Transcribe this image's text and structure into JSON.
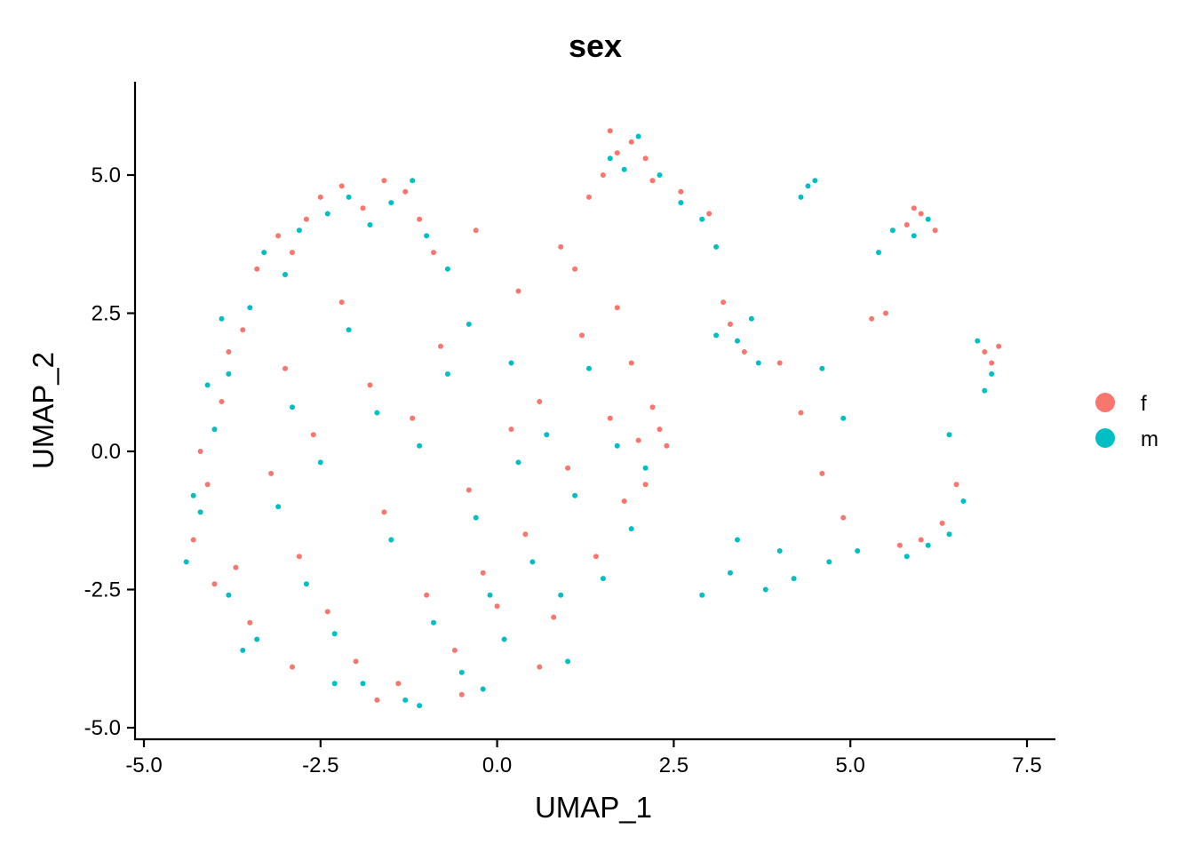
{
  "chart_data": {
    "type": "scatter",
    "title": "sex",
    "xlabel": "UMAP_1",
    "ylabel": "UMAP_2",
    "xlim": [
      -5.2,
      7.9
    ],
    "ylim": [
      -5.2,
      6.9
    ],
    "x_ticks": [
      -5.0,
      -2.5,
      0.0,
      2.5,
      5.0,
      7.5
    ],
    "x_tick_labels": [
      "-5.0",
      "-2.5",
      "0.0",
      "2.5",
      "5.0",
      "7.5"
    ],
    "y_ticks": [
      -5.0,
      -2.5,
      0.0,
      2.5,
      5.0
    ],
    "y_tick_labels": [
      "-5.0",
      "-2.5",
      "0.0",
      "2.5",
      "5.0"
    ],
    "grid": false,
    "legend_position": "right",
    "series": [
      {
        "name": "f",
        "color": "#F8766D",
        "points": [
          [
            -4.3,
            -1.6
          ],
          [
            -4.1,
            -0.6
          ],
          [
            -3.9,
            0.9
          ],
          [
            -3.6,
            2.2
          ],
          [
            -3.4,
            3.3
          ],
          [
            -3.1,
            3.9
          ],
          [
            -2.9,
            3.6
          ],
          [
            -2.7,
            4.2
          ],
          [
            -2.5,
            4.6
          ],
          [
            -2.2,
            4.8
          ],
          [
            -1.9,
            4.4
          ],
          [
            -1.6,
            4.9
          ],
          [
            -1.3,
            4.7
          ],
          [
            -1.1,
            4.2
          ],
          [
            -0.9,
            3.6
          ],
          [
            -3.7,
            -2.1
          ],
          [
            -3.5,
            -3.1
          ],
          [
            -3.2,
            -0.4
          ],
          [
            -3.0,
            1.5
          ],
          [
            -2.8,
            -1.9
          ],
          [
            -2.6,
            0.3
          ],
          [
            -2.4,
            -2.9
          ],
          [
            -2.2,
            2.7
          ],
          [
            -2.0,
            -3.8
          ],
          [
            -1.8,
            1.2
          ],
          [
            -1.6,
            -1.1
          ],
          [
            -1.4,
            -4.2
          ],
          [
            -1.2,
            0.6
          ],
          [
            -1.0,
            -2.6
          ],
          [
            -0.8,
            1.9
          ],
          [
            -0.6,
            -3.6
          ],
          [
            -0.4,
            -0.7
          ],
          [
            -0.2,
            -2.2
          ],
          [
            0.0,
            -2.8
          ],
          [
            0.2,
            0.4
          ],
          [
            0.4,
            -1.5
          ],
          [
            0.6,
            0.9
          ],
          [
            0.8,
            -3.0
          ],
          [
            1.0,
            -0.3
          ],
          [
            1.2,
            2.1
          ],
          [
            1.4,
            -1.9
          ],
          [
            1.6,
            0.6
          ],
          [
            1.8,
            -0.9
          ],
          [
            2.0,
            0.2
          ],
          [
            2.2,
            0.8
          ],
          [
            2.3,
            0.4
          ],
          [
            2.4,
            0.1
          ],
          [
            2.1,
            -0.6
          ],
          [
            1.9,
            1.6
          ],
          [
            1.7,
            2.6
          ],
          [
            1.5,
            5.0
          ],
          [
            1.7,
            5.4
          ],
          [
            1.9,
            5.6
          ],
          [
            2.1,
            5.3
          ],
          [
            1.6,
            5.8
          ],
          [
            2.2,
            4.9
          ],
          [
            1.3,
            4.6
          ],
          [
            2.6,
            4.7
          ],
          [
            3.0,
            4.3
          ],
          [
            3.3,
            2.3
          ],
          [
            3.5,
            1.8
          ],
          [
            3.2,
            2.7
          ],
          [
            4.0,
            1.6
          ],
          [
            4.3,
            0.7
          ],
          [
            4.6,
            -0.4
          ],
          [
            4.9,
            -1.2
          ],
          [
            5.3,
            2.4
          ],
          [
            5.5,
            2.5
          ],
          [
            5.8,
            4.1
          ],
          [
            6.0,
            4.3
          ],
          [
            6.2,
            4.0
          ],
          [
            5.9,
            4.4
          ],
          [
            6.5,
            -0.6
          ],
          [
            6.3,
            -1.3
          ],
          [
            6.0,
            -1.6
          ],
          [
            5.7,
            -1.7
          ],
          [
            6.9,
            1.8
          ],
          [
            7.0,
            1.6
          ],
          [
            7.1,
            1.9
          ],
          [
            0.6,
            -3.9
          ],
          [
            -0.5,
            -4.4
          ],
          [
            -1.7,
            -4.5
          ],
          [
            -2.9,
            -3.9
          ],
          [
            -4.0,
            -2.4
          ],
          [
            -4.2,
            0.0
          ],
          [
            -3.8,
            1.8
          ],
          [
            0.9,
            3.7
          ],
          [
            0.3,
            2.9
          ],
          [
            -0.3,
            4.0
          ],
          [
            1.1,
            3.3
          ]
        ]
      },
      {
        "name": "m",
        "color": "#00BFC4",
        "points": [
          [
            -4.4,
            -2.0
          ],
          [
            -4.2,
            -1.1
          ],
          [
            -4.0,
            0.4
          ],
          [
            -3.8,
            1.4
          ],
          [
            -3.5,
            2.6
          ],
          [
            -3.3,
            3.6
          ],
          [
            -3.0,
            3.2
          ],
          [
            -2.8,
            4.0
          ],
          [
            -2.4,
            4.3
          ],
          [
            -2.1,
            4.6
          ],
          [
            -1.8,
            4.1
          ],
          [
            -1.5,
            4.5
          ],
          [
            -1.2,
            4.9
          ],
          [
            -1.0,
            3.9
          ],
          [
            -0.7,
            3.3
          ],
          [
            -3.8,
            -2.6
          ],
          [
            -3.4,
            -3.4
          ],
          [
            -3.1,
            -1.0
          ],
          [
            -2.9,
            0.8
          ],
          [
            -2.7,
            -2.4
          ],
          [
            -2.5,
            -0.2
          ],
          [
            -2.3,
            -3.3
          ],
          [
            -2.1,
            2.2
          ],
          [
            -1.9,
            -4.2
          ],
          [
            -1.7,
            0.7
          ],
          [
            -1.5,
            -1.6
          ],
          [
            -1.3,
            -4.5
          ],
          [
            -1.1,
            0.1
          ],
          [
            -0.9,
            -3.1
          ],
          [
            -0.7,
            1.4
          ],
          [
            -0.5,
            -4.0
          ],
          [
            -0.3,
            -1.2
          ],
          [
            -0.1,
            -2.6
          ],
          [
            0.1,
            -3.4
          ],
          [
            0.3,
            -0.2
          ],
          [
            0.5,
            -2.0
          ],
          [
            0.7,
            0.3
          ],
          [
            0.9,
            -2.6
          ],
          [
            1.1,
            -0.8
          ],
          [
            1.3,
            1.5
          ],
          [
            1.5,
            -2.3
          ],
          [
            1.7,
            0.1
          ],
          [
            1.9,
            -1.4
          ],
          [
            2.1,
            -0.3
          ],
          [
            0.2,
            1.6
          ],
          [
            -0.4,
            2.3
          ],
          [
            1.6,
            5.3
          ],
          [
            1.8,
            5.1
          ],
          [
            2.0,
            5.7
          ],
          [
            2.3,
            5.0
          ],
          [
            2.6,
            4.5
          ],
          [
            2.9,
            4.2
          ],
          [
            3.1,
            3.7
          ],
          [
            3.4,
            2.0
          ],
          [
            3.6,
            2.4
          ],
          [
            3.1,
            2.1
          ],
          [
            3.7,
            1.6
          ],
          [
            4.4,
            4.8
          ],
          [
            4.3,
            4.6
          ],
          [
            4.5,
            4.9
          ],
          [
            5.6,
            4.0
          ],
          [
            5.9,
            3.9
          ],
          [
            6.1,
            4.2
          ],
          [
            5.4,
            3.6
          ],
          [
            6.4,
            0.3
          ],
          [
            6.6,
            -0.9
          ],
          [
            6.4,
            -1.5
          ],
          [
            6.1,
            -1.7
          ],
          [
            5.8,
            -1.9
          ],
          [
            5.1,
            -1.8
          ],
          [
            4.7,
            -2.0
          ],
          [
            4.2,
            -2.3
          ],
          [
            3.8,
            -2.5
          ],
          [
            3.3,
            -2.2
          ],
          [
            2.9,
            -2.6
          ],
          [
            3.4,
            -1.6
          ],
          [
            4.0,
            -1.8
          ],
          [
            6.8,
            2.0
          ],
          [
            7.0,
            1.4
          ],
          [
            6.9,
            1.1
          ],
          [
            4.9,
            0.6
          ],
          [
            4.6,
            1.5
          ],
          [
            1.0,
            -3.8
          ],
          [
            -0.2,
            -4.3
          ],
          [
            -1.1,
            -4.6
          ],
          [
            -2.3,
            -4.2
          ],
          [
            -3.6,
            -3.6
          ],
          [
            -4.3,
            -0.8
          ],
          [
            -4.1,
            1.2
          ],
          [
            -3.9,
            2.4
          ]
        ]
      }
    ]
  }
}
